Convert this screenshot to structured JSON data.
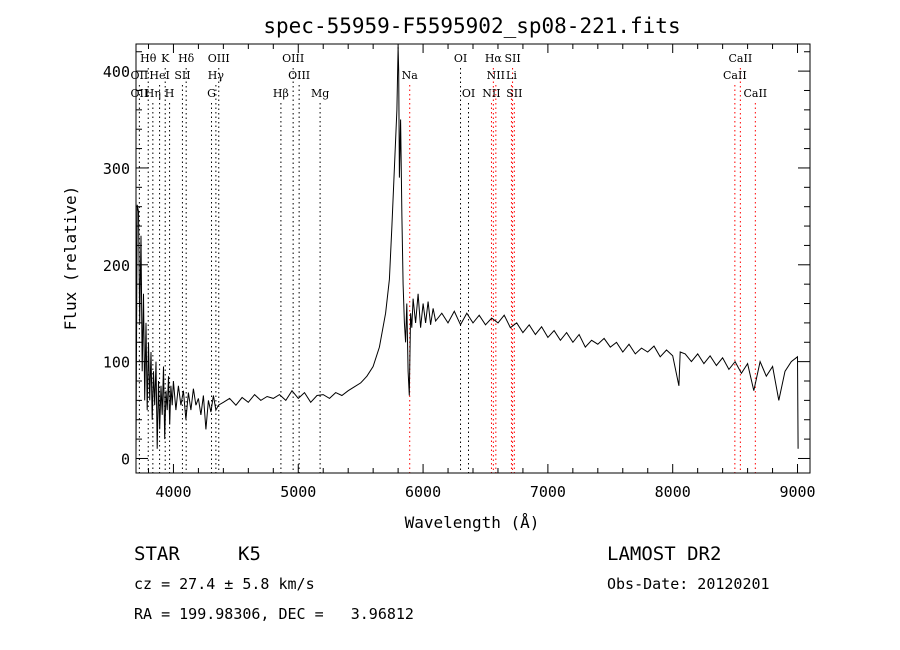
{
  "chart_data": {
    "type": "line",
    "title": "spec-55959-F5595902_sp08-221.fits",
    "xlabel": "Wavelength (Å)",
    "ylabel": "Flux (relative)",
    "xlim": [
      3700,
      9100
    ],
    "ylim": [
      -15,
      428
    ],
    "xticks": [
      4000,
      5000,
      6000,
      7000,
      8000,
      9000
    ],
    "yticks": [
      0,
      100,
      200,
      300,
      400
    ],
    "grid": false,
    "series": [
      {
        "values": [
          [
            3700,
            5
          ],
          [
            3710,
            262
          ],
          [
            3720,
            255
          ],
          [
            3730,
            140
          ],
          [
            3740,
            230
          ],
          [
            3750,
            90
          ],
          [
            3760,
            170
          ],
          [
            3770,
            60
          ],
          [
            3780,
            140
          ],
          [
            3790,
            50
          ],
          [
            3800,
            120
          ],
          [
            3810,
            60
          ],
          [
            3820,
            110
          ],
          [
            3830,
            40
          ],
          [
            3840,
            90
          ],
          [
            3850,
            55
          ],
          [
            3860,
            100
          ],
          [
            3870,
            10
          ],
          [
            3880,
            80
          ],
          [
            3890,
            30
          ],
          [
            3900,
            75
          ],
          [
            3910,
            45
          ],
          [
            3920,
            95
          ],
          [
            3930,
            20
          ],
          [
            3940,
            70
          ],
          [
            3950,
            50
          ],
          [
            3960,
            85
          ],
          [
            3970,
            35
          ],
          [
            3980,
            75
          ],
          [
            3990,
            55
          ],
          [
            4000,
            80
          ],
          [
            4020,
            50
          ],
          [
            4040,
            75
          ],
          [
            4060,
            55
          ],
          [
            4080,
            70
          ],
          [
            4100,
            40
          ],
          [
            4120,
            68
          ],
          [
            4140,
            50
          ],
          [
            4160,
            72
          ],
          [
            4180,
            55
          ],
          [
            4200,
            62
          ],
          [
            4220,
            45
          ],
          [
            4240,
            65
          ],
          [
            4260,
            30
          ],
          [
            4280,
            60
          ],
          [
            4300,
            48
          ],
          [
            4320,
            65
          ],
          [
            4340,
            50
          ],
          [
            4360,
            55
          ],
          [
            4400,
            58
          ],
          [
            4450,
            62
          ],
          [
            4500,
            55
          ],
          [
            4550,
            63
          ],
          [
            4600,
            58
          ],
          [
            4650,
            66
          ],
          [
            4700,
            60
          ],
          [
            4750,
            64
          ],
          [
            4800,
            62
          ],
          [
            4850,
            66
          ],
          [
            4900,
            60
          ],
          [
            4950,
            70
          ],
          [
            5000,
            62
          ],
          [
            5050,
            68
          ],
          [
            5100,
            58
          ],
          [
            5150,
            65
          ],
          [
            5200,
            66
          ],
          [
            5250,
            62
          ],
          [
            5300,
            68
          ],
          [
            5350,
            65
          ],
          [
            5400,
            70
          ],
          [
            5450,
            74
          ],
          [
            5500,
            78
          ],
          [
            5550,
            85
          ],
          [
            5600,
            95
          ],
          [
            5650,
            115
          ],
          [
            5700,
            150
          ],
          [
            5730,
            185
          ],
          [
            5750,
            240
          ],
          [
            5770,
            300
          ],
          [
            5790,
            360
          ],
          [
            5800,
            425
          ],
          [
            5805,
            400
          ],
          [
            5810,
            290
          ],
          [
            5820,
            350
          ],
          [
            5830,
            250
          ],
          [
            5840,
            180
          ],
          [
            5850,
            140
          ],
          [
            5860,
            120
          ],
          [
            5870,
            160
          ],
          [
            5880,
            90
          ],
          [
            5890,
            65
          ],
          [
            5900,
            150
          ],
          [
            5910,
            135
          ],
          [
            5920,
            165
          ],
          [
            5940,
            140
          ],
          [
            5960,
            170
          ],
          [
            5980,
            135
          ],
          [
            6000,
            160
          ],
          [
            6020,
            140
          ],
          [
            6040,
            162
          ],
          [
            6060,
            138
          ],
          [
            6080,
            155
          ],
          [
            6100,
            142
          ],
          [
            6150,
            150
          ],
          [
            6200,
            140
          ],
          [
            6250,
            152
          ],
          [
            6300,
            138
          ],
          [
            6350,
            150
          ],
          [
            6400,
            140
          ],
          [
            6450,
            148
          ],
          [
            6500,
            138
          ],
          [
            6550,
            145
          ],
          [
            6600,
            140
          ],
          [
            6650,
            148
          ],
          [
            6700,
            135
          ],
          [
            6750,
            140
          ],
          [
            6800,
            130
          ],
          [
            6850,
            138
          ],
          [
            6900,
            128
          ],
          [
            6950,
            136
          ],
          [
            7000,
            125
          ],
          [
            7050,
            132
          ],
          [
            7100,
            122
          ],
          [
            7150,
            130
          ],
          [
            7200,
            120
          ],
          [
            7250,
            128
          ],
          [
            7300,
            115
          ],
          [
            7350,
            122
          ],
          [
            7400,
            118
          ],
          [
            7450,
            124
          ],
          [
            7500,
            115
          ],
          [
            7550,
            120
          ],
          [
            7600,
            110
          ],
          [
            7650,
            118
          ],
          [
            7700,
            108
          ],
          [
            7750,
            114
          ],
          [
            7800,
            110
          ],
          [
            7850,
            116
          ],
          [
            7900,
            105
          ],
          [
            7950,
            112
          ],
          [
            8000,
            106
          ],
          [
            8050,
            75
          ],
          [
            8060,
            110
          ],
          [
            8100,
            108
          ],
          [
            8150,
            100
          ],
          [
            8200,
            108
          ],
          [
            8250,
            98
          ],
          [
            8300,
            106
          ],
          [
            8350,
            96
          ],
          [
            8400,
            104
          ],
          [
            8450,
            92
          ],
          [
            8500,
            100
          ],
          [
            8550,
            88
          ],
          [
            8600,
            98
          ],
          [
            8650,
            70
          ],
          [
            8700,
            100
          ],
          [
            8750,
            85
          ],
          [
            8800,
            95
          ],
          [
            8850,
            60
          ],
          [
            8900,
            90
          ],
          [
            8950,
            100
          ],
          [
            9000,
            105
          ],
          [
            9005,
            10
          ]
        ]
      }
    ],
    "line_markers": [
      {
        "label": "Hθ",
        "x": 3798,
        "row": 0,
        "color": "#000000"
      },
      {
        "label": "K",
        "x": 3934,
        "row": 0,
        "color": "#000000"
      },
      {
        "label": "Hδ",
        "x": 4102,
        "row": 0,
        "color": "#000000"
      },
      {
        "label": "OIII",
        "x": 4363,
        "row": 0,
        "color": "#000000"
      },
      {
        "label": "OIII",
        "x": 4959,
        "row": 0,
        "color": "#000000"
      },
      {
        "label": "OI",
        "x": 6300,
        "row": 0,
        "color": "#000000"
      },
      {
        "label": "Hα",
        "x": 6563,
        "row": 0,
        "color": "#ff0000"
      },
      {
        "label": "SII",
        "x": 6717,
        "row": 0,
        "color": "#ff0000"
      },
      {
        "label": "CaII",
        "x": 8542,
        "row": 0,
        "color": "#ff0000"
      },
      {
        "label": "OII",
        "x": 3727,
        "row": 1,
        "color": "#000000"
      },
      {
        "label": "HeI",
        "x": 3889,
        "row": 1,
        "color": "#000000"
      },
      {
        "label": "SII",
        "x": 4072,
        "row": 1,
        "color": "#000000"
      },
      {
        "label": "Hγ",
        "x": 4340,
        "row": 1,
        "color": "#000000"
      },
      {
        "label": "OIII",
        "x": 5007,
        "row": 1,
        "color": "#000000"
      },
      {
        "label": "Na",
        "x": 5893,
        "row": 1,
        "color": "#ff0000"
      },
      {
        "label": "NII",
        "x": 6583,
        "row": 1,
        "color": "#ff0000"
      },
      {
        "label": "Li",
        "x": 6708,
        "row": 1,
        "color": "#ff0000"
      },
      {
        "label": "CaII",
        "x": 8498,
        "row": 1,
        "color": "#ff0000"
      },
      {
        "label": "OII",
        "x": 3727,
        "row": 2,
        "color": "#000000"
      },
      {
        "label": "Hη",
        "x": 3835,
        "row": 2,
        "color": "#000000"
      },
      {
        "label": "H",
        "x": 3969,
        "row": 2,
        "color": "#000000"
      },
      {
        "label": "G",
        "x": 4305,
        "row": 2,
        "color": "#000000"
      },
      {
        "label": "Hβ",
        "x": 4861,
        "row": 2,
        "color": "#000000"
      },
      {
        "label": "Mg",
        "x": 5175,
        "row": 2,
        "color": "#000000"
      },
      {
        "label": "OI",
        "x": 6364,
        "row": 2,
        "color": "#000000"
      },
      {
        "label": "NII",
        "x": 6548,
        "row": 2,
        "color": "#ff0000"
      },
      {
        "label": "SII",
        "x": 6731,
        "row": 2,
        "color": "#ff0000"
      },
      {
        "label": "CaII",
        "x": 8662,
        "row": 2,
        "color": "#ff0000"
      }
    ]
  },
  "info": {
    "object_class": "STAR",
    "subclass": "K5",
    "release": "LAMOST DR2",
    "redshift": "cz = 27.4 ± 5.8 km/s",
    "obs_date": "Obs-Date: 20120201",
    "coords": "RA = 199.98306, DEC =   3.96812"
  }
}
